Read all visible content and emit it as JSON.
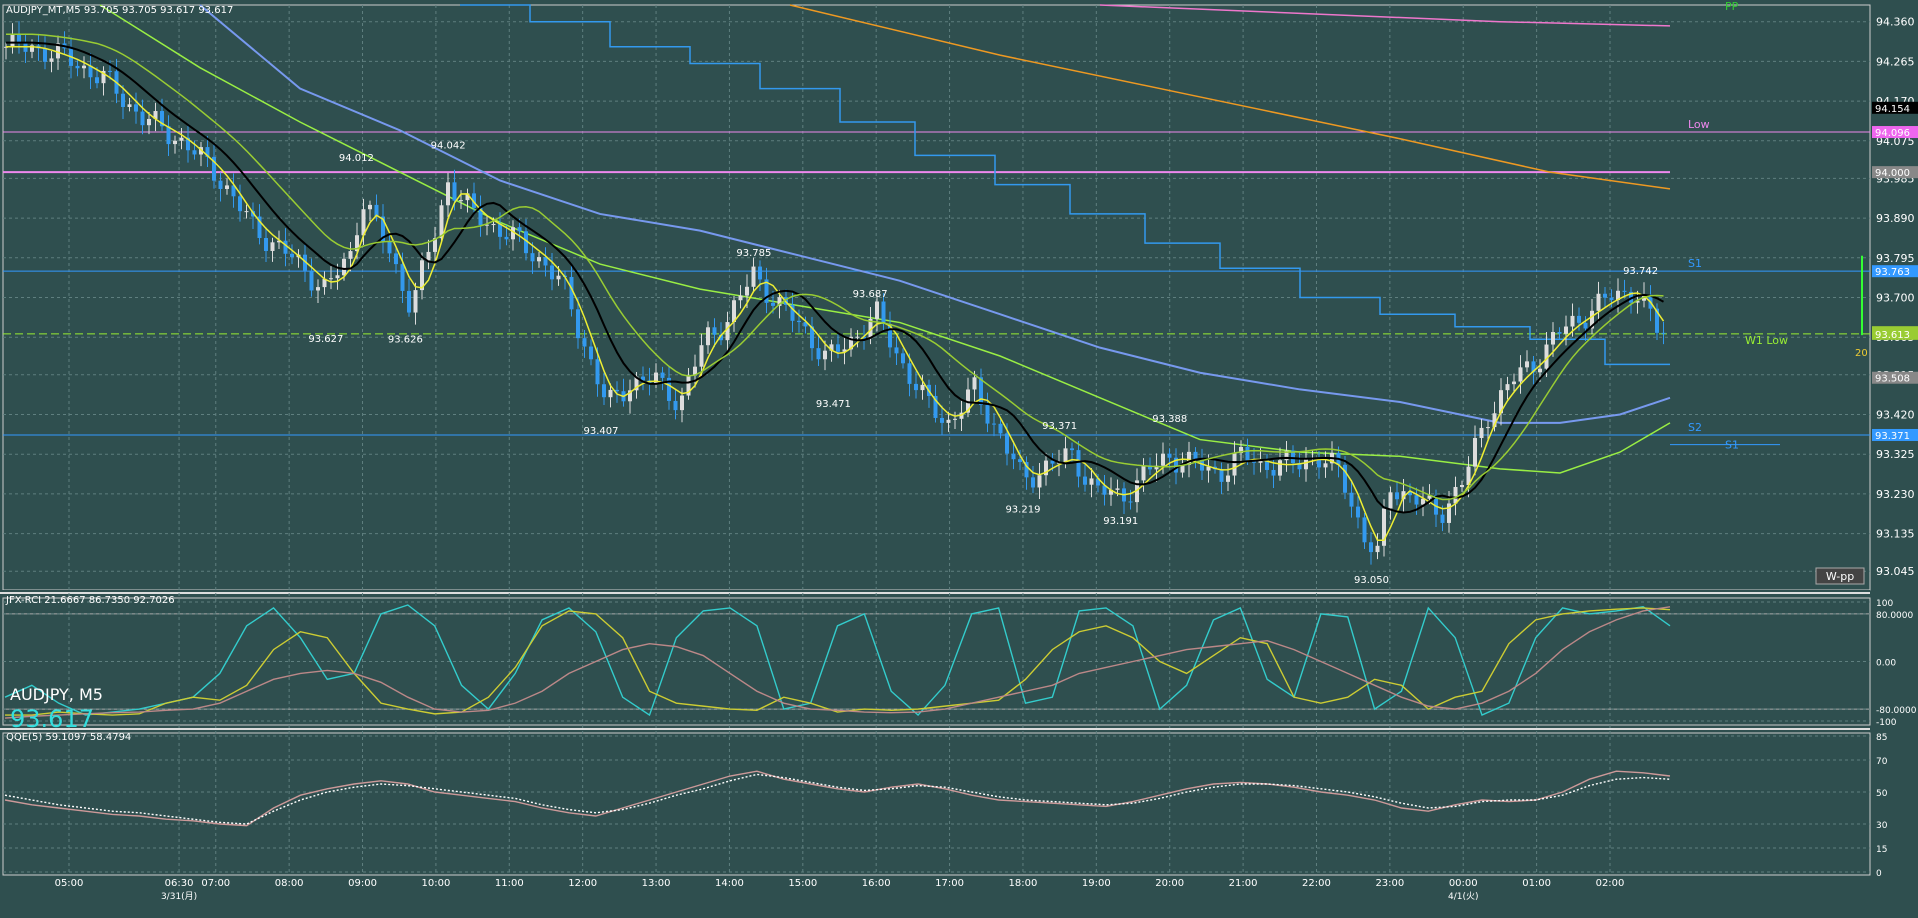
{
  "header": {
    "symbol_line": "AUDJPY_MT,M5  93.705 93.705 93.617 93.617"
  },
  "watermark": {
    "symbol": "AUDJPY, M5",
    "price": "93.617"
  },
  "wpp_button": "W-pp",
  "chart_data": [
    {
      "type": "candlestick",
      "title": "AUDJPY_MT,M5  93.705 93.705 93.617 93.617",
      "ylim": [
        93.0,
        94.4
      ],
      "y_ticks": [
        "94.360",
        "94.265",
        "94.170",
        "94.075",
        "93.985",
        "93.890",
        "93.795",
        "93.700",
        "93.605",
        "93.515",
        "93.420",
        "93.325",
        "93.230",
        "93.135",
        "93.045"
      ],
      "x_ticks": [
        "05:00",
        "06:30",
        "07:00",
        "08:00",
        "09:00",
        "10:00",
        "11:00",
        "12:00",
        "13:00",
        "14:00",
        "15:00",
        "16:00",
        "17:00",
        "18:00",
        "19:00",
        "20:00",
        "21:00",
        "22:00",
        "23:00",
        "00:00",
        "01:00",
        "02:00"
      ],
      "date_labels": [
        "3/31(月)",
        "4/1(火)"
      ],
      "price_labels": [
        {
          "text": "94.012",
          "x": "08:55",
          "y": 94.012
        },
        {
          "text": "94.042",
          "x": "10:10",
          "y": 94.042
        },
        {
          "text": "93.627",
          "x": "08:30",
          "y": 93.627
        },
        {
          "text": "93.626",
          "x": "09:35",
          "y": 93.626
        },
        {
          "text": "93.407",
          "x": "12:15",
          "y": 93.407
        },
        {
          "text": "93.785",
          "x": "14:20",
          "y": 93.785
        },
        {
          "text": "93.687",
          "x": "15:55",
          "y": 93.687
        },
        {
          "text": "93.471",
          "x": "15:25",
          "y": 93.471
        },
        {
          "text": "93.371",
          "x": "18:30",
          "y": 93.371
        },
        {
          "text": "93.219",
          "x": "18:00",
          "y": 93.219
        },
        {
          "text": "93.388",
          "x": "20:00",
          "y": 93.388
        },
        {
          "text": "93.191",
          "x": "19:20",
          "y": 93.191
        },
        {
          "text": "93.050",
          "x": "22:45",
          "y": 93.05
        },
        {
          "text": "93.742",
          "x": "02:25",
          "y": 93.742
        }
      ],
      "levels": [
        {
          "name": "PP",
          "price": 94.4,
          "color": "#33cc33"
        },
        {
          "name": "Low",
          "price": 94.096,
          "color": "#ee88ee"
        },
        {
          "name": "S1",
          "price": 93.763,
          "color": "#3399ff"
        },
        {
          "name": "W1 Low",
          "price": 93.613,
          "color": "#99ee33"
        },
        {
          "name": "S2",
          "price": 93.371,
          "color": "#3399ff"
        },
        {
          "name": "S1",
          "price": 93.36,
          "color": "#3399ff"
        }
      ],
      "axis_badges": [
        {
          "text": "94.154",
          "price": 94.154,
          "color": "#000000"
        },
        {
          "text": "94.096",
          "price": 94.096,
          "color": "#ee66ee"
        },
        {
          "text": "94.000",
          "price": 94.0,
          "color": "#888888"
        },
        {
          "text": "93.763",
          "price": 93.763,
          "color": "#3399ff"
        },
        {
          "text": "93.617",
          "price": 93.617,
          "color": "#99cc33"
        },
        {
          "text": "93.613",
          "price": 93.613,
          "color": "#99cc33"
        },
        {
          "text": "93.508",
          "price": 93.508,
          "color": "#888888"
        },
        {
          "text": "93.371",
          "price": 93.371,
          "color": "#3399ff"
        }
      ],
      "right_marker": "20",
      "close_path": [
        [
          "04:30",
          94.3
        ],
        [
          "05:00",
          94.27
        ],
        [
          "05:30",
          94.22
        ],
        [
          "06:00",
          94.13
        ],
        [
          "06:30",
          94.08
        ],
        [
          "07:00",
          94.0
        ],
        [
          "07:30",
          93.87
        ],
        [
          "08:00",
          93.8
        ],
        [
          "08:30",
          93.72
        ],
        [
          "08:50",
          93.8
        ],
        [
          "09:00",
          93.94
        ],
        [
          "09:20",
          93.82
        ],
        [
          "09:40",
          93.68
        ],
        [
          "10:00",
          93.86
        ],
        [
          "10:10",
          93.98
        ],
        [
          "10:30",
          93.9
        ],
        [
          "11:00",
          93.85
        ],
        [
          "11:30",
          93.78
        ],
        [
          "11:45",
          93.72
        ],
        [
          "12:00",
          93.6
        ],
        [
          "12:20",
          93.44
        ],
        [
          "12:40",
          93.5
        ],
        [
          "13:00",
          93.5
        ],
        [
          "13:20",
          93.45
        ],
        [
          "13:40",
          93.6
        ],
        [
          "14:00",
          93.65
        ],
        [
          "14:20",
          93.76
        ],
        [
          "14:40",
          93.68
        ],
        [
          "15:00",
          93.63
        ],
        [
          "15:20",
          93.55
        ],
        [
          "15:40",
          93.6
        ],
        [
          "16:00",
          93.66
        ],
        [
          "16:20",
          93.55
        ],
        [
          "16:40",
          93.45
        ],
        [
          "17:00",
          93.4
        ],
        [
          "17:20",
          93.48
        ],
        [
          "17:40",
          93.38
        ],
        [
          "18:00",
          93.26
        ],
        [
          "18:20",
          93.3
        ],
        [
          "18:40",
          93.32
        ],
        [
          "19:00",
          93.24
        ],
        [
          "19:20",
          93.22
        ],
        [
          "19:40",
          93.28
        ],
        [
          "20:00",
          93.32
        ],
        [
          "20:20",
          93.3
        ],
        [
          "20:40",
          93.28
        ],
        [
          "21:00",
          93.32
        ],
        [
          "21:20",
          93.3
        ],
        [
          "21:40",
          93.3
        ],
        [
          "22:00",
          93.32
        ],
        [
          "22:20",
          93.28
        ],
        [
          "22:40",
          93.12
        ],
        [
          "22:50",
          93.08
        ],
        [
          "23:00",
          93.25
        ],
        [
          "23:20",
          93.22
        ],
        [
          "23:40",
          93.18
        ],
        [
          "00:00",
          93.26
        ],
        [
          "00:20",
          93.42
        ],
        [
          "00:40",
          93.5
        ],
        [
          "01:00",
          93.55
        ],
        [
          "01:20",
          93.62
        ],
        [
          "01:40",
          93.66
        ],
        [
          "02:00",
          93.7
        ],
        [
          "02:20",
          93.72
        ],
        [
          "02:40",
          93.617
        ]
      ]
    },
    {
      "type": "line",
      "title": "JFX-RCI 21.6667 86.7350 92.7026",
      "ylim": [
        -100,
        100
      ],
      "y_ticks": [
        "100",
        "80.0000",
        "0.00",
        "-80.0000",
        "-100"
      ],
      "series": [
        {
          "color": "#33cccc",
          "values": [
            -60,
            -40,
            -70,
            -90,
            -85,
            -80,
            -70,
            -60,
            -20,
            60,
            90,
            40,
            -30,
            -20,
            80,
            95,
            60,
            -40,
            -80,
            -20,
            70,
            90,
            50,
            -60,
            -90,
            40,
            85,
            90,
            60,
            -80,
            -70,
            60,
            80,
            -50,
            -90,
            -40,
            80,
            90,
            -70,
            -60,
            85,
            90,
            60,
            -80,
            -40,
            70,
            90,
            -30,
            -60,
            80,
            75,
            -80,
            -50,
            90,
            40,
            -90,
            -70,
            40,
            90,
            80,
            85,
            92,
            60
          ]
        },
        {
          "color": "#cccc33",
          "values": [
            -90,
            -90,
            -85,
            -88,
            -90,
            -88,
            -70,
            -60,
            -65,
            -40,
            20,
            50,
            40,
            -20,
            -70,
            -80,
            -88,
            -85,
            -60,
            -10,
            60,
            85,
            80,
            40,
            -50,
            -70,
            -75,
            -80,
            -82,
            -60,
            -70,
            -85,
            -80,
            -82,
            -80,
            -75,
            -70,
            -65,
            -30,
            20,
            50,
            60,
            40,
            0,
            -20,
            10,
            40,
            30,
            -60,
            -70,
            -60,
            -30,
            -40,
            -80,
            -60,
            -50,
            30,
            70,
            80,
            85,
            88,
            90,
            87
          ]
        },
        {
          "color": "#bb8888",
          "values": [
            -95,
            -92,
            -90,
            -88,
            -86,
            -85,
            -82,
            -80,
            -70,
            -50,
            -30,
            -20,
            -15,
            -20,
            -35,
            -60,
            -80,
            -85,
            -82,
            -70,
            -50,
            -20,
            0,
            20,
            30,
            25,
            10,
            -20,
            -50,
            -70,
            -80,
            -82,
            -85,
            -86,
            -85,
            -80,
            -70,
            -60,
            -50,
            -40,
            -20,
            -10,
            0,
            10,
            20,
            25,
            30,
            35,
            20,
            0,
            -20,
            -40,
            -60,
            -75,
            -80,
            -70,
            -50,
            -20,
            20,
            50,
            70,
            85,
            92
          ]
        }
      ]
    },
    {
      "type": "line",
      "title": "QQE(5) 59.1097 58.4794",
      "ylim": [
        0,
        85
      ],
      "y_ticks": [
        "85",
        "70",
        "50",
        "30",
        "15",
        "0"
      ],
      "series": [
        {
          "color": "#cc9999",
          "values": [
            45,
            42,
            40,
            38,
            36,
            35,
            33,
            32,
            30,
            29,
            40,
            48,
            52,
            55,
            57,
            55,
            50,
            48,
            46,
            44,
            40,
            37,
            35,
            40,
            45,
            50,
            55,
            60,
            63,
            58,
            55,
            52,
            50,
            53,
            55,
            52,
            48,
            45,
            44,
            43,
            42,
            41,
            44,
            48,
            52,
            55,
            56,
            55,
            53,
            50,
            48,
            45,
            40,
            38,
            42,
            45,
            44,
            45,
            50,
            58,
            63,
            62,
            60
          ]
        },
        {
          "color": "#ffffff",
          "dash": "2,2",
          "values": [
            48,
            45,
            42,
            40,
            38,
            37,
            35,
            33,
            31,
            30,
            38,
            45,
            50,
            53,
            55,
            54,
            52,
            50,
            48,
            46,
            42,
            39,
            37,
            39,
            43,
            48,
            52,
            57,
            61,
            59,
            56,
            53,
            51,
            52,
            54,
            53,
            50,
            47,
            45,
            44,
            43,
            42,
            43,
            46,
            50,
            53,
            55,
            55,
            54,
            52,
            50,
            47,
            43,
            40,
            41,
            44,
            45,
            45,
            48,
            54,
            58,
            59,
            58
          ]
        }
      ]
    }
  ]
}
